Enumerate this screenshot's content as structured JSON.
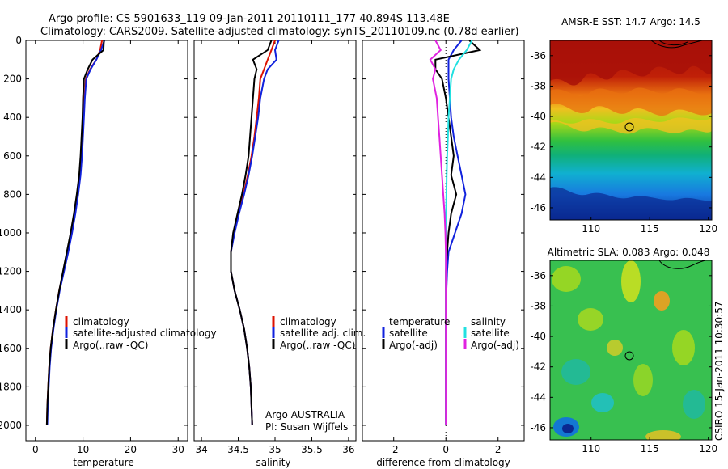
{
  "header": {
    "line1": "Argo profile: CS 5901633_119 09-Jan-2011 20110111_177 40.894S 113.48E",
    "line2": "Climatology: CARS2009. Satellite-adjusted climatology: synTS_20110109.nc (0.78d earlier)"
  },
  "colors": {
    "climatology": "#dd1100",
    "satellite": "#1122dd",
    "argo": "#000000",
    "satellite_sal": "#22e0e0",
    "argo_sal": "#e022e0"
  },
  "depth_ticks": [
    "0",
    "200",
    "400",
    "600",
    "800",
    "1000",
    "1200",
    "1400",
    "1600",
    "1800",
    "2000"
  ],
  "panel_temperature": {
    "xlabel": "temperature",
    "xticks": [
      "0",
      "10",
      "20",
      "30"
    ],
    "legend": [
      "climatology",
      "satellite-adjusted climatology",
      "Argo(..raw -QC)"
    ]
  },
  "panel_salinity": {
    "xlabel": "salinity",
    "xticks": [
      "34",
      "34.5",
      "35",
      "35.5",
      "36"
    ],
    "legend": [
      "climatology",
      "satellite adj. clim.",
      "Argo(..raw -QC)"
    ],
    "credit1": "Argo AUSTRALIA",
    "credit2": "PI: Susan Wijffels"
  },
  "panel_difference": {
    "xlabel": "difference from climatology",
    "xticks": [
      "-2",
      "0",
      "2"
    ],
    "legend_temp_title": "temperature",
    "legend_temp": [
      "satellite",
      "Argo(-adj)"
    ],
    "legend_sal_title": "salinity",
    "legend_sal": [
      "satellite",
      "Argo(-adj)"
    ]
  },
  "map_sst": {
    "title": "AMSR-E SST: 14.7 Argo: 14.5",
    "yticks": [
      "-36",
      "-38",
      "-40",
      "-42",
      "-44",
      "-46"
    ],
    "xticks": [
      "110",
      "115",
      "120"
    ]
  },
  "map_sla": {
    "title": "Altimetric SLA: 0.083 Argo: 0.048",
    "yticks": [
      "-36",
      "-38",
      "-40",
      "-42",
      "-44",
      "-46"
    ],
    "xticks": [
      "110",
      "115",
      "120"
    ],
    "side_label": "CSIRO 15-Jan-2011 10:30:57"
  },
  "chart_data": [
    {
      "type": "line",
      "panel": "temperature",
      "xlabel": "temperature",
      "ylabel": "",
      "xlim": [
        -2,
        32
      ],
      "ylim": [
        2080,
        0
      ],
      "series": [
        {
          "name": "climatology",
          "x": [
            14.0,
            13.6,
            12.8,
            11.5,
            10.6,
            10.3,
            10.1,
            9.9,
            9.7,
            9.4,
            8.9,
            8.3,
            7.6,
            6.8,
            5.9,
            5.0,
            4.3,
            3.7,
            3.2,
            2.9,
            2.7,
            2.5,
            2.4
          ],
          "y": [
            0,
            50,
            100,
            150,
            200,
            300,
            400,
            500,
            600,
            700,
            800,
            900,
            1000,
            1100,
            1200,
            1300,
            1400,
            1500,
            1600,
            1700,
            1800,
            1900,
            2000
          ]
        },
        {
          "name": "satellite-adjusted climatology",
          "x": [
            14.5,
            13.8,
            12.8,
            11.6,
            10.7,
            10.4,
            10.2,
            10.0,
            9.8,
            9.5,
            9.0,
            8.4,
            7.7,
            6.9,
            6.0,
            5.1,
            4.4,
            3.8,
            3.3,
            3.0,
            2.8,
            2.6,
            2.5
          ],
          "y": [
            0,
            50,
            100,
            150,
            200,
            300,
            400,
            500,
            600,
            700,
            800,
            900,
            1000,
            1100,
            1200,
            1300,
            1400,
            1500,
            1600,
            1700,
            1800,
            1900,
            2000
          ]
        },
        {
          "name": "Argo(..raw -QC)",
          "x": [
            14.4,
            14.3,
            12.0,
            11.0,
            10.2,
            10.0,
            9.9,
            9.7,
            9.5,
            9.2,
            8.7,
            8.1,
            7.4,
            6.6,
            5.8,
            5.0,
            4.3,
            3.7,
            3.2,
            2.9,
            2.7,
            2.5,
            2.4
          ],
          "y": [
            0,
            50,
            100,
            150,
            200,
            300,
            400,
            500,
            600,
            700,
            800,
            900,
            1000,
            1100,
            1200,
            1300,
            1400,
            1500,
            1600,
            1700,
            1800,
            1900,
            2000
          ]
        }
      ]
    },
    {
      "type": "line",
      "panel": "salinity",
      "xlabel": "salinity",
      "ylabel": "",
      "xlim": [
        33.9,
        36.1
      ],
      "ylim": [
        2080,
        0
      ],
      "series": [
        {
          "name": "climatology",
          "x": [
            35.0,
            34.95,
            34.9,
            34.85,
            34.8,
            34.78,
            34.75,
            34.72,
            34.68,
            34.63,
            34.57,
            34.5,
            34.44,
            34.4,
            34.4,
            34.45,
            34.52,
            34.58,
            34.62,
            34.65,
            34.67,
            34.68,
            34.69
          ],
          "y": [
            0,
            50,
            100,
            150,
            200,
            300,
            400,
            500,
            600,
            700,
            800,
            900,
            1000,
            1100,
            1200,
            1300,
            1400,
            1500,
            1600,
            1700,
            1800,
            1900,
            2000
          ]
        },
        {
          "name": "satellite adj. clim.",
          "x": [
            35.05,
            35.0,
            35.02,
            34.9,
            34.85,
            34.8,
            34.77,
            34.73,
            34.69,
            34.64,
            34.58,
            34.51,
            34.45,
            34.4,
            34.4,
            34.45,
            34.52,
            34.58,
            34.62,
            34.65,
            34.67,
            34.68,
            34.69
          ],
          "y": [
            0,
            50,
            100,
            150,
            200,
            300,
            400,
            500,
            600,
            700,
            800,
            900,
            1000,
            1100,
            1200,
            1300,
            1400,
            1500,
            1600,
            1700,
            1800,
            1900,
            2000
          ]
        },
        {
          "name": "Argo(..raw -QC)",
          "x": [
            34.95,
            34.9,
            34.7,
            34.75,
            34.72,
            34.7,
            34.68,
            34.66,
            34.64,
            34.6,
            34.55,
            34.49,
            34.43,
            34.4,
            34.4,
            34.45,
            34.52,
            34.58,
            34.62,
            34.65,
            34.67,
            34.68,
            34.69
          ],
          "y": [
            0,
            50,
            100,
            150,
            200,
            300,
            400,
            500,
            600,
            700,
            800,
            900,
            1000,
            1100,
            1200,
            1300,
            1400,
            1500,
            1600,
            1700,
            1800,
            1900,
            2000
          ]
        }
      ]
    },
    {
      "type": "line",
      "panel": "difference",
      "xlabel": "difference from climatology",
      "ylabel": "",
      "xlim": [
        -3.2,
        3.0
      ],
      "ylim": [
        2080,
        0
      ],
      "series": [
        {
          "name": "temperature satellite",
          "x": [
            0.6,
            0.3,
            0.1,
            0.1,
            0.1,
            0.15,
            0.2,
            0.3,
            0.45,
            0.6,
            0.75,
            0.6,
            0.35,
            0.1,
            0.05,
            0.02,
            0.01,
            0.0,
            0.0,
            0.0,
            0.0,
            0.0,
            0.0
          ],
          "y": [
            0,
            50,
            100,
            150,
            200,
            300,
            400,
            500,
            600,
            700,
            800,
            900,
            1000,
            1100,
            1200,
            1300,
            1400,
            1500,
            1600,
            1700,
            1800,
            1900,
            2000
          ]
        },
        {
          "name": "temperature Argo(-adj)",
          "x": [
            0.9,
            1.3,
            -0.4,
            -0.4,
            -0.15,
            0.0,
            0.1,
            0.2,
            0.3,
            0.2,
            0.4,
            0.2,
            0.1,
            0.05,
            0.0,
            0.0,
            0.0,
            0.0,
            0.0,
            0.0,
            0.0,
            0.0,
            0.0
          ],
          "y": [
            0,
            50,
            100,
            150,
            200,
            300,
            400,
            500,
            600,
            700,
            800,
            900,
            1000,
            1100,
            1200,
            1300,
            1400,
            1500,
            1600,
            1700,
            1800,
            1900,
            2000
          ]
        },
        {
          "name": "salinity satellite",
          "x": [
            1.0,
            0.8,
            0.5,
            0.3,
            0.2,
            0.15,
            0.1,
            0.08,
            0.05,
            0.03,
            0.02,
            0.01,
            0.0,
            0.0,
            0.0,
            0.0,
            0.0,
            0.0,
            0.0,
            0.0,
            0.0,
            0.0,
            0.0
          ],
          "y": [
            0,
            50,
            100,
            150,
            200,
            300,
            400,
            500,
            600,
            700,
            800,
            900,
            1000,
            1100,
            1200,
            1300,
            1400,
            1500,
            1600,
            1700,
            1800,
            1900,
            2000
          ]
        },
        {
          "name": "salinity Argo(-adj)",
          "x": [
            -0.4,
            -0.2,
            -0.6,
            -0.4,
            -0.5,
            -0.35,
            -0.3,
            -0.25,
            -0.2,
            -0.15,
            -0.1,
            -0.05,
            -0.02,
            0.0,
            0.0,
            0.0,
            0.0,
            0.0,
            0.0,
            0.0,
            0.0,
            0.0,
            0.0
          ],
          "y": [
            0,
            50,
            100,
            150,
            200,
            300,
            400,
            500,
            600,
            700,
            800,
            900,
            1000,
            1100,
            1200,
            1300,
            1400,
            1500,
            1600,
            1700,
            1800,
            1900,
            2000
          ]
        }
      ]
    }
  ]
}
